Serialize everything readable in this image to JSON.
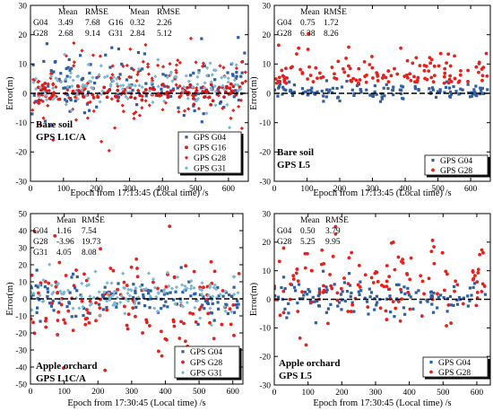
{
  "colors": {
    "G04": "#2e5fa3",
    "G16": "#d7191c",
    "G28": "#e8201c",
    "G31": "#7db7cf",
    "zero_line": "#000000"
  },
  "chart_data": [
    {
      "type": "scatter",
      "panel": "top-left",
      "xlabel": "Epoch from 17:13:45 (Local time) /s",
      "ylabel": "Error(m)",
      "xlim": [
        0,
        660
      ],
      "ylim": [
        -30,
        30
      ],
      "xticks": [
        0,
        100,
        200,
        300,
        400,
        500,
        600
      ],
      "yticks": [
        -30,
        -20,
        -10,
        0,
        10,
        20,
        30
      ],
      "annotation": [
        "Bare soil",
        "GPS L1C/A"
      ],
      "stats_table": {
        "headers": [
          "",
          "Mean",
          "RMSE",
          "",
          "Mean",
          "RMSE"
        ],
        "rows": [
          [
            "G04",
            "3.49",
            "7.68",
            "G16",
            "0.32",
            "2.26"
          ],
          [
            "G28",
            "2.68",
            "9.14",
            "G31",
            "2.84",
            "5.12"
          ]
        ]
      },
      "legend_position": "bottom-right",
      "series": [
        {
          "name": "GPS G04",
          "key": "G04",
          "marker": "square",
          "mean": 3.49,
          "rmse": 7.68
        },
        {
          "name": "GPS G16",
          "key": "G16",
          "marker": "circle",
          "mean": 0.32,
          "rmse": 2.26
        },
        {
          "name": "GPS G28",
          "key": "G28",
          "marker": "diamond",
          "mean": 2.68,
          "rmse": 9.14
        },
        {
          "name": "GPS G31",
          "key": "G31",
          "marker": "diamond",
          "mean": 2.84,
          "rmse": 5.12
        }
      ]
    },
    {
      "type": "scatter",
      "panel": "top-right",
      "xlabel": "Epoch from 17:13:45 (Local time) /s",
      "ylabel": "Error(m)",
      "xlim": [
        0,
        660
      ],
      "ylim": [
        -30,
        30
      ],
      "xticks": [
        0,
        100,
        200,
        300,
        400,
        500,
        600
      ],
      "yticks": [
        -30,
        -20,
        -10,
        0,
        10,
        20,
        30
      ],
      "annotation": [
        "Bare soil",
        "GPS L5"
      ],
      "stats_table": {
        "headers": [
          "",
          "Mean",
          "RMSE"
        ],
        "rows": [
          [
            "G04",
            "0.75",
            "1.72"
          ],
          [
            "G28",
            "6.38",
            "8.26"
          ]
        ]
      },
      "legend_position": "bottom-right",
      "series": [
        {
          "name": "GPS G04",
          "key": "G04",
          "marker": "square",
          "mean": 0.75,
          "rmse": 1.72
        },
        {
          "name": "GPS G28",
          "key": "G28",
          "marker": "circle",
          "mean": 6.38,
          "rmse": 8.26
        }
      ]
    },
    {
      "type": "scatter",
      "panel": "bottom-left",
      "xlabel": "Epoch from 17:30:45 (Local time) /s",
      "ylabel": "Error(m)",
      "xlim": [
        0,
        630
      ],
      "ylim": [
        -50,
        50
      ],
      "xticks": [
        0,
        100,
        200,
        300,
        400,
        500,
        600
      ],
      "yticks": [
        -50,
        -40,
        -30,
        -20,
        -10,
        0,
        10,
        20,
        30,
        40,
        50
      ],
      "annotation": [
        "Apple orchard",
        "GPS L1C/A"
      ],
      "stats_table": {
        "headers": [
          "",
          "Mean",
          "RMSE"
        ],
        "rows": [
          [
            "G04",
            "1.16",
            "7.54"
          ],
          [
            "G28",
            "-3.96",
            "19.73"
          ],
          [
            "G31",
            "4.05",
            "8.08"
          ]
        ]
      },
      "legend_position": "bottom-right",
      "series": [
        {
          "name": "GPS G04",
          "key": "G04",
          "marker": "square",
          "mean": 1.16,
          "rmse": 7.54
        },
        {
          "name": "GPS G28",
          "key": "G28",
          "marker": "circle",
          "mean": -3.96,
          "rmse": 19.73
        },
        {
          "name": "GPS G31",
          "key": "G31",
          "marker": "diamond",
          "mean": 4.05,
          "rmse": 8.08
        }
      ]
    },
    {
      "type": "scatter",
      "panel": "bottom-right",
      "xlabel": "Epoch from 17:30:45 (Local time) /s",
      "ylabel": "Error(m)",
      "xlim": [
        0,
        640
      ],
      "ylim": [
        -30,
        30
      ],
      "xticks": [
        0,
        100,
        200,
        300,
        400,
        500,
        600
      ],
      "yticks": [
        -30,
        -20,
        -10,
        0,
        10,
        20,
        30
      ],
      "annotation": [
        "Apple orchard",
        "GPS L5"
      ],
      "stats_table": {
        "headers": [
          "",
          "Mean",
          "RMSE"
        ],
        "rows": [
          [
            "G04",
            "0.50",
            "3.79"
          ],
          [
            "G28",
            "5.25",
            "9.95"
          ]
        ]
      },
      "legend_position": "bottom-right",
      "series": [
        {
          "name": "GPS G04",
          "key": "G04",
          "marker": "square",
          "mean": 0.5,
          "rmse": 3.79
        },
        {
          "name": "GPS G28",
          "key": "G28",
          "marker": "circle",
          "mean": 5.25,
          "rmse": 9.95
        }
      ]
    }
  ]
}
